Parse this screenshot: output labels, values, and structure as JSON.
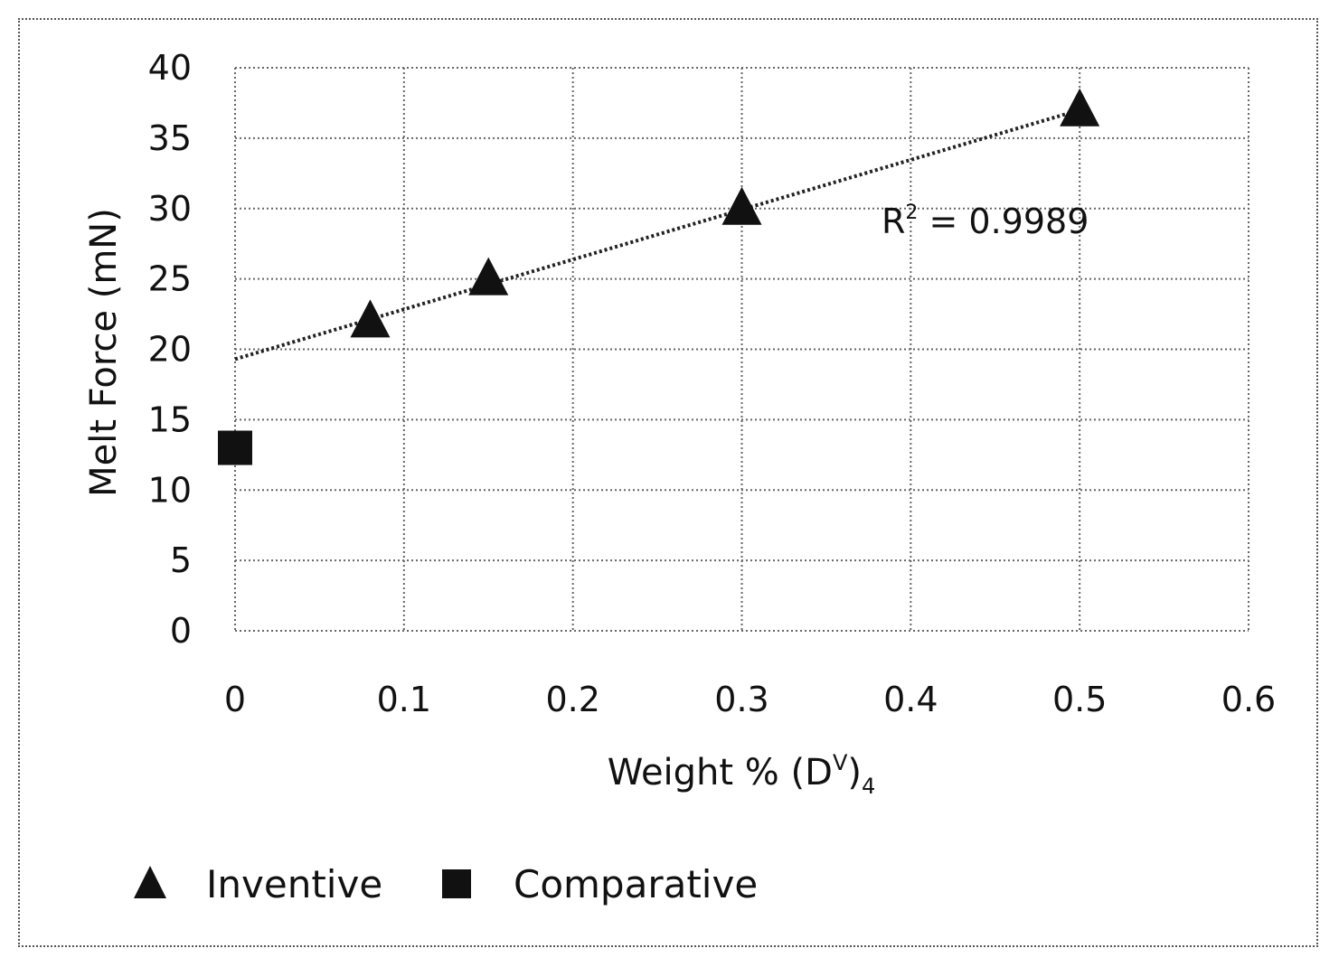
{
  "chart_data": {
    "type": "scatter",
    "xlabel_main": "Weight % (D",
    "xlabel_sup": "V",
    "xlabel_close": ")",
    "xlabel_sub": "4",
    "ylabel": "Melt Force (mN)",
    "xlim": [
      0,
      0.6
    ],
    "ylim": [
      0,
      40
    ],
    "x_ticks": [
      "0",
      "0.1",
      "0.2",
      "0.3",
      "0.4",
      "0.5",
      "0.6"
    ],
    "y_ticks": [
      "0",
      "5",
      "10",
      "15",
      "20",
      "25",
      "30",
      "35",
      "40"
    ],
    "grid": true,
    "series": [
      {
        "name": "Inventive",
        "marker": "triangle",
        "x": [
          0.08,
          0.15,
          0.3,
          0.5
        ],
        "y": [
          22,
          25,
          30,
          37
        ]
      },
      {
        "name": "Comparative",
        "marker": "square",
        "x": [
          0
        ],
        "y": [
          13
        ]
      }
    ],
    "trendline": {
      "series": "Inventive",
      "type": "linear",
      "x": [
        0,
        0.5
      ],
      "y": [
        19.3,
        37
      ]
    },
    "annotation": {
      "text_prefix": "R",
      "text_sup": "2",
      "text_suffix": " = 0.9989"
    },
    "legend": {
      "position": "bottom-left"
    }
  }
}
